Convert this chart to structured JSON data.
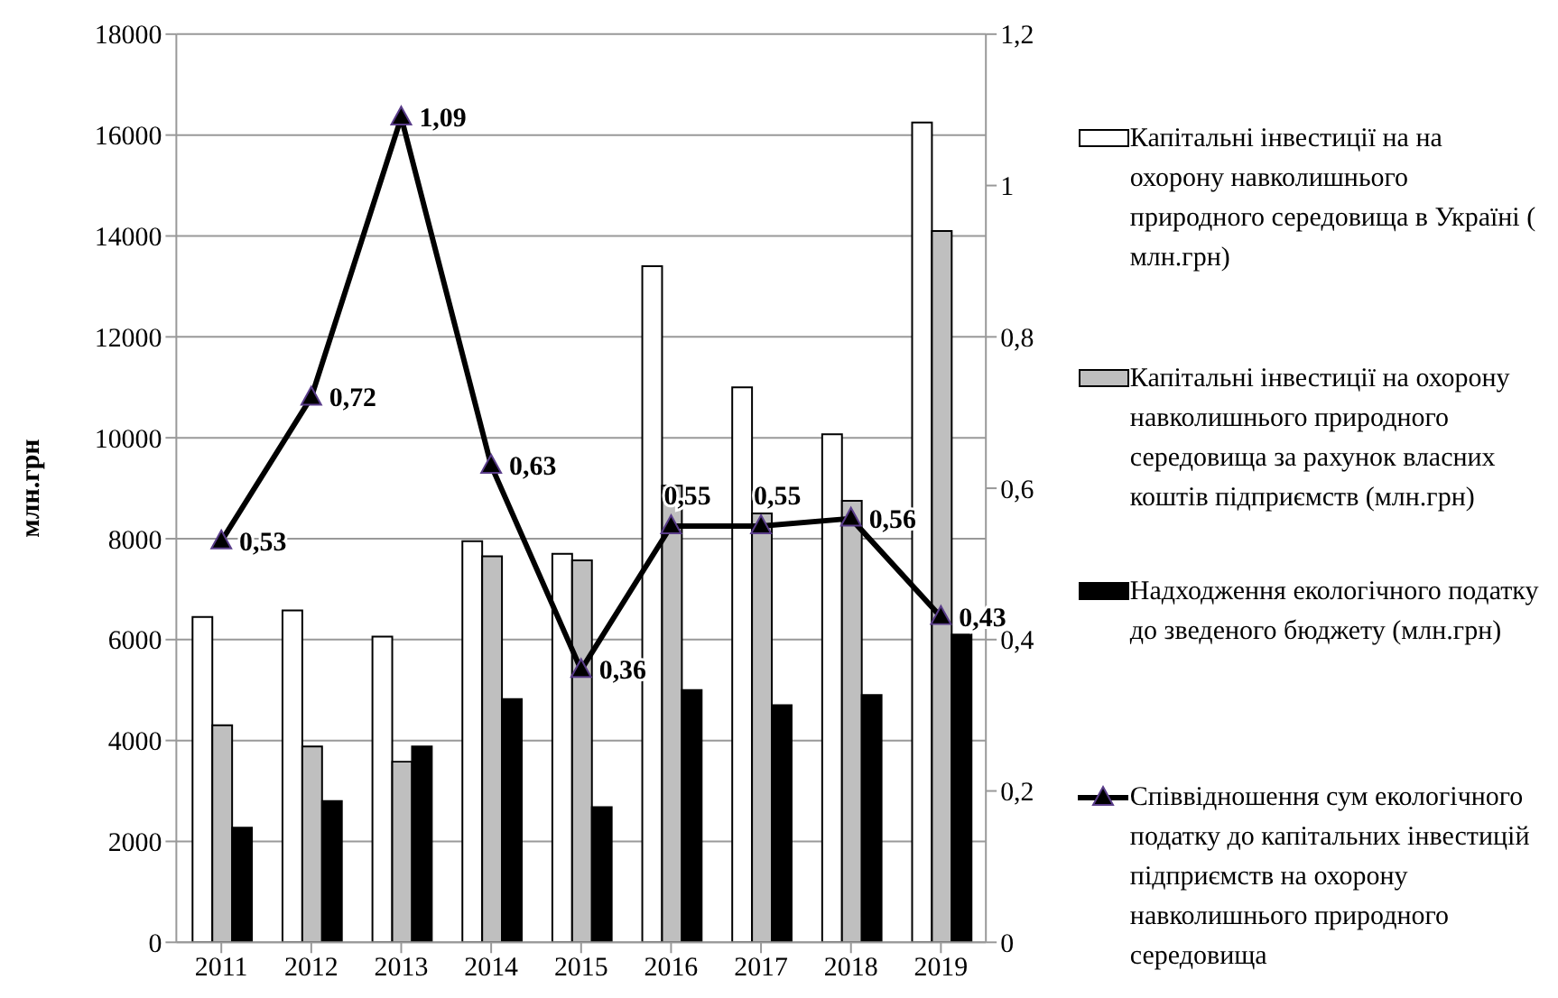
{
  "chart_data": {
    "type": "bar",
    "ylabel": "млн.грн",
    "categories": [
      "2011",
      "2012",
      "2013",
      "2014",
      "2015",
      "2016",
      "2017",
      "2018",
      "2019"
    ],
    "series": [
      {
        "name": "Капітальні інвестиції на на охорону навколишнього природного середовища в  Україні ( млн.грн)",
        "color": "#ffffff",
        "values": [
          6450,
          6580,
          6060,
          7950,
          7700,
          13400,
          11000,
          10070,
          16250
        ]
      },
      {
        "name": "Капітальні інвестиції на охорону навколишнього природного середовища за рахунок власних коштів підприємств (млн.грн)",
        "color": "#bfbfbf",
        "values": [
          4300,
          3880,
          3580,
          7650,
          7570,
          9050,
          8500,
          8750,
          14100
        ]
      },
      {
        "name": "Надходження екологічного податку до зведеного бюджету (млн.грн)",
        "color": "#000000",
        "values": [
          2270,
          2800,
          3880,
          4820,
          2680,
          5000,
          4700,
          4900,
          6100
        ]
      },
      {
        "name": "Співвідношення сум екологічного податку до капітальних інвестицій підприємств на охорону навколишнього природного середовища",
        "type": "line",
        "axis": "y2",
        "color": "#000000",
        "marker": "triangle",
        "values": [
          0.53,
          0.72,
          1.09,
          0.63,
          0.36,
          0.55,
          0.55,
          0.56,
          0.43
        ],
        "value_labels": [
          "0,53",
          "0,72",
          "1,09",
          "0,63",
          "0,36",
          "0,55",
          "0,55",
          "0,56",
          "0,43"
        ]
      }
    ],
    "ylim": [
      0,
      18000
    ],
    "yticks": [
      0,
      2000,
      4000,
      6000,
      8000,
      10000,
      12000,
      14000,
      16000,
      18000
    ],
    "y2lim": [
      0,
      1.2
    ],
    "y2ticks": [
      0,
      {
        "value": 0.2,
        "label": "0,2"
      },
      {
        "value": 0.4,
        "label": "0,4"
      },
      {
        "value": 0.6,
        "label": "0,6"
      },
      {
        "value": 0.8,
        "label": "0,8"
      },
      1,
      {
        "value": 1.2,
        "label": "1,2"
      }
    ],
    "grid": "y",
    "legend": "right"
  }
}
